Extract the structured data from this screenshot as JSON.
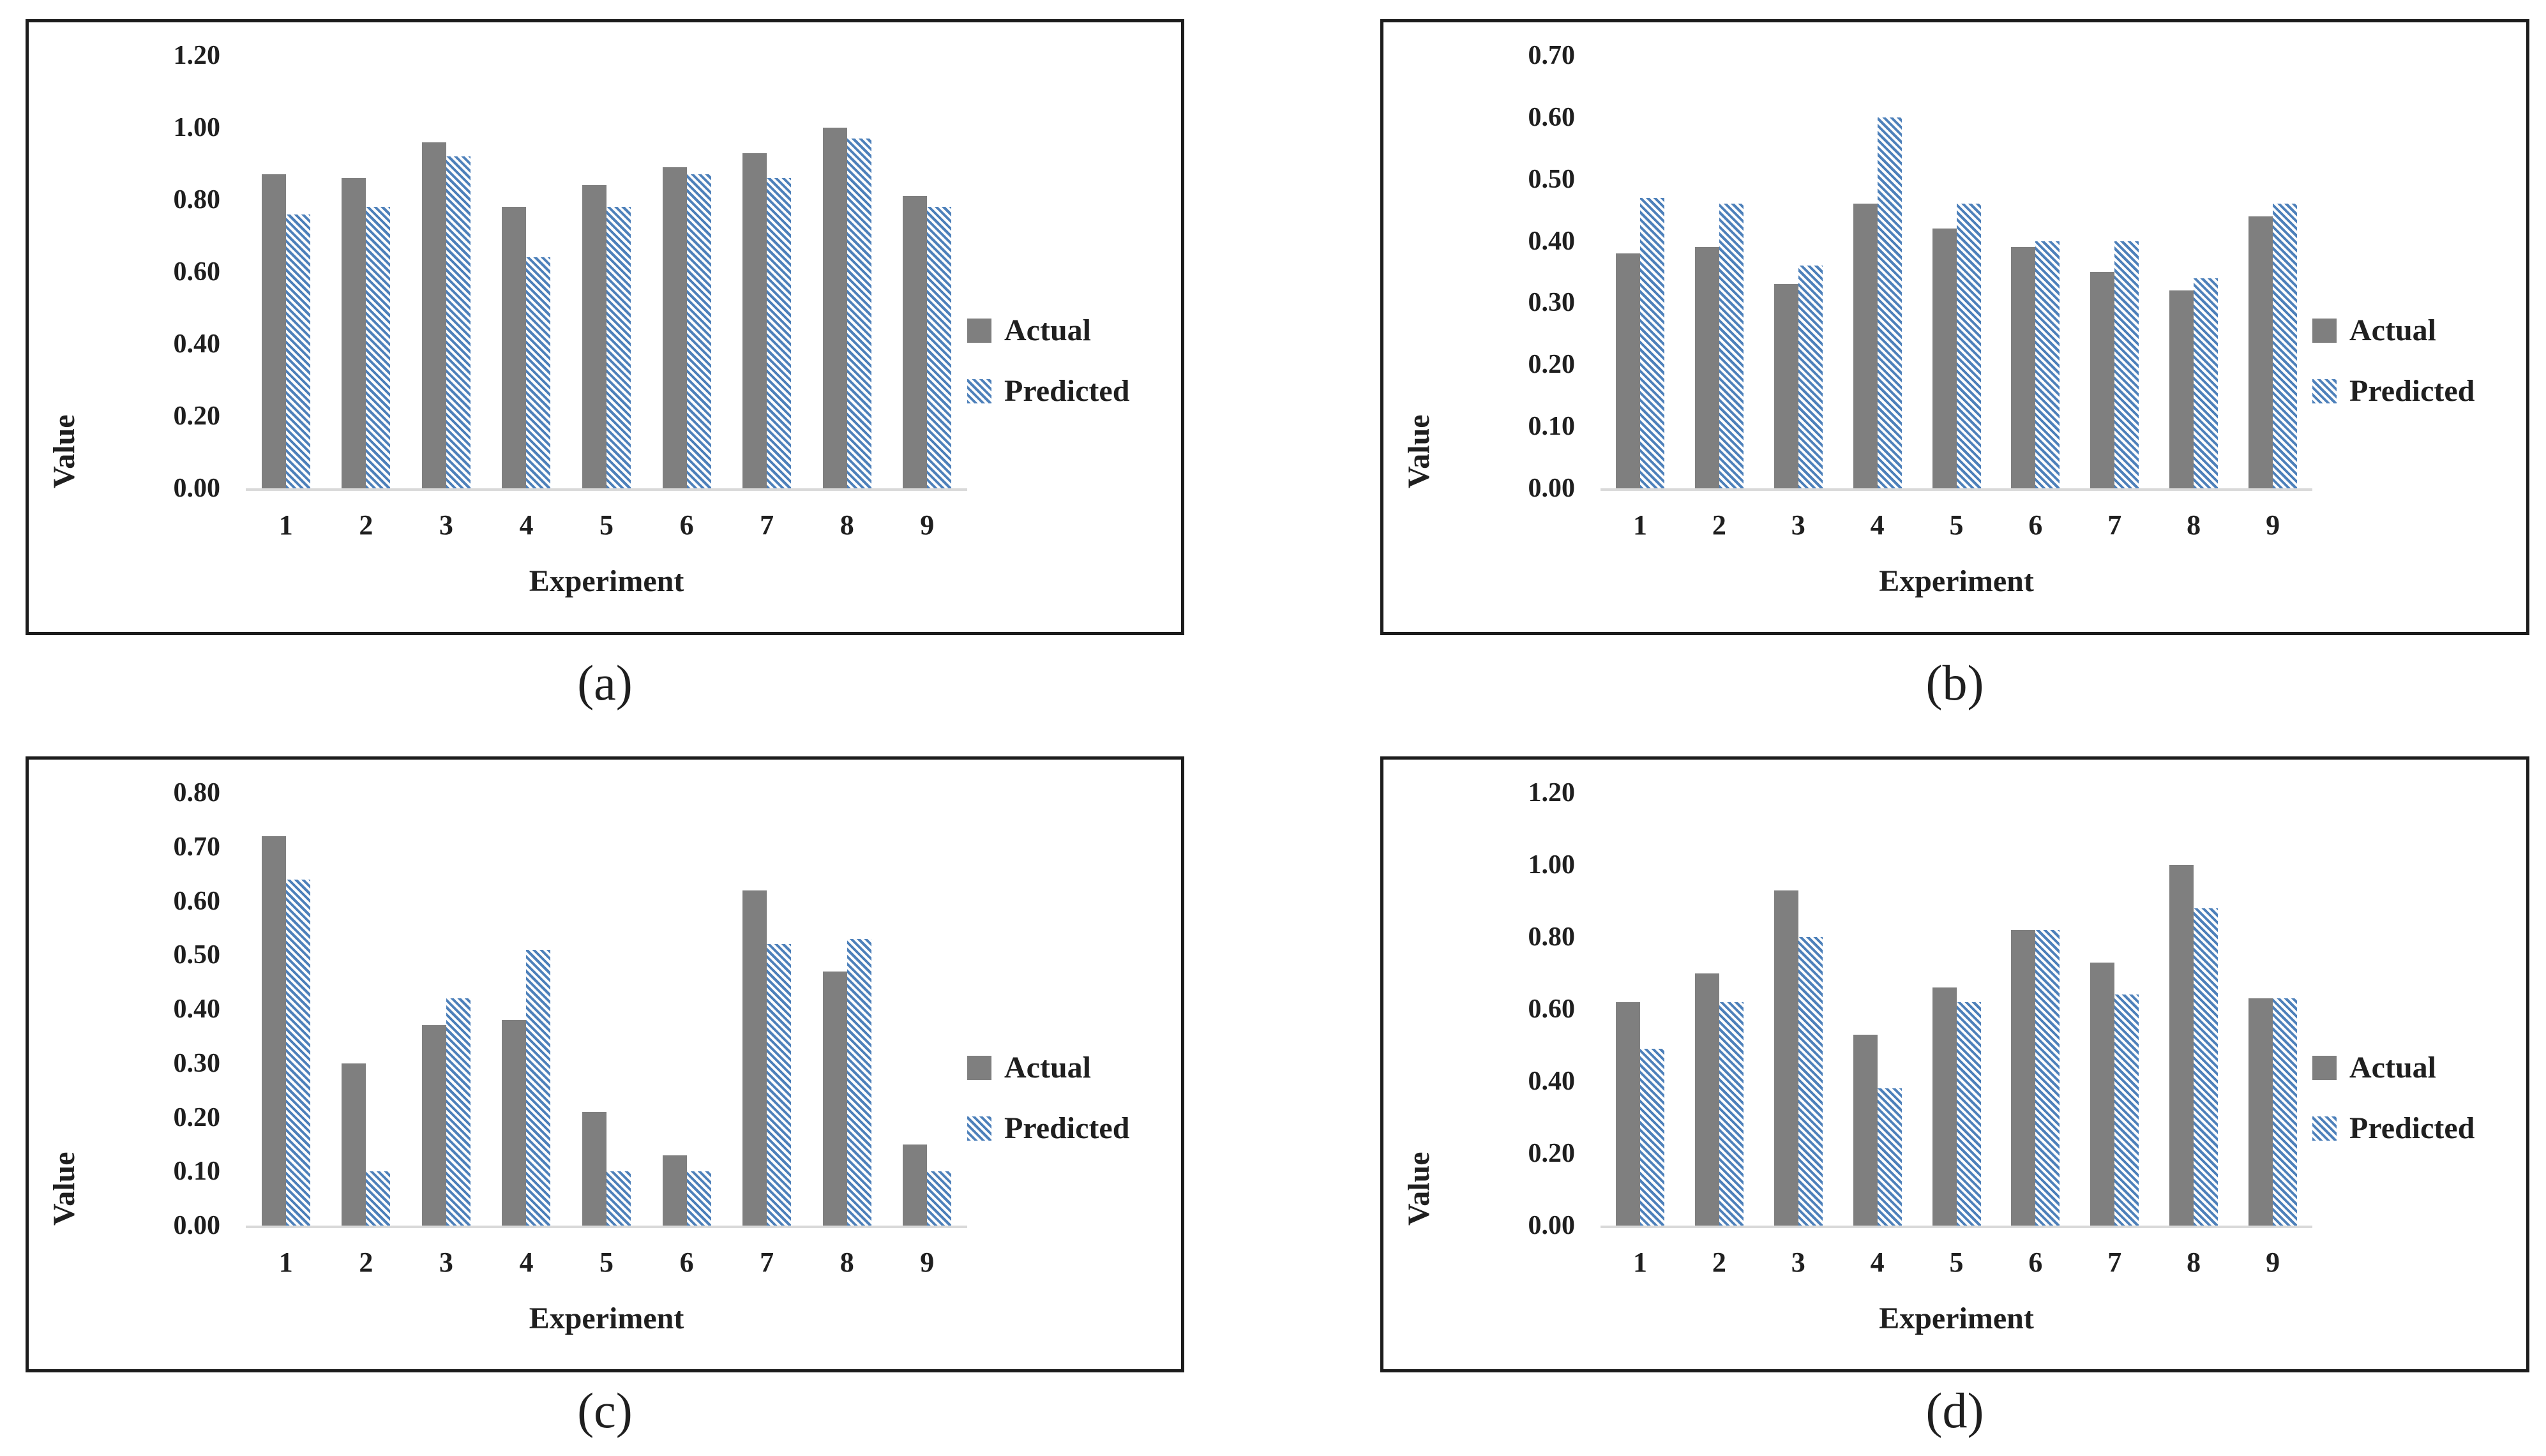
{
  "colors": {
    "actual_bar": "#7f7f7f",
    "predicted_bar_stripe": "#4d80ba",
    "axis_line": "#d9d9d9",
    "text": "#1f1f1f",
    "panel_border": "#1c1c1c"
  },
  "legend": {
    "actual": "Actual",
    "predicted": "Predicted"
  },
  "chart_data": [
    {
      "type": "bar",
      "panel_label": "(a)",
      "xlabel": "Experiment",
      "ylabel": "Value",
      "categories": [
        "1",
        "2",
        "3",
        "4",
        "5",
        "6",
        "7",
        "8",
        "9"
      ],
      "ylim": [
        0,
        1.2
      ],
      "ytick_labels": [
        "1.20",
        "1.00",
        "0.80",
        "0.60",
        "0.40",
        "0.20",
        "0.00"
      ],
      "grid": false,
      "legend_position": "right",
      "series": [
        {
          "name": "Actual",
          "values": [
            0.87,
            0.86,
            0.96,
            0.78,
            0.84,
            0.89,
            0.93,
            1.0,
            0.81
          ]
        },
        {
          "name": "Predicted",
          "values": [
            0.76,
            0.78,
            0.92,
            0.64,
            0.78,
            0.87,
            0.86,
            0.97,
            0.78
          ]
        }
      ]
    },
    {
      "type": "bar",
      "panel_label": "(b)",
      "xlabel": "Experiment",
      "ylabel": "Value",
      "categories": [
        "1",
        "2",
        "3",
        "4",
        "5",
        "6",
        "7",
        "8",
        "9"
      ],
      "ylim": [
        0,
        0.7
      ],
      "ytick_labels": [
        "0.70",
        "0.60",
        "0.50",
        "0.40",
        "0.30",
        "0.20",
        "0.10",
        "0.00"
      ],
      "grid": false,
      "legend_position": "right",
      "series": [
        {
          "name": "Actual",
          "values": [
            0.38,
            0.39,
            0.33,
            0.46,
            0.42,
            0.39,
            0.35,
            0.32,
            0.44
          ]
        },
        {
          "name": "Predicted",
          "values": [
            0.47,
            0.46,
            0.36,
            0.6,
            0.46,
            0.4,
            0.4,
            0.34,
            0.46
          ]
        }
      ]
    },
    {
      "type": "bar",
      "panel_label": "(c)",
      "xlabel": "Experiment",
      "ylabel": "Value",
      "categories": [
        "1",
        "2",
        "3",
        "4",
        "5",
        "6",
        "7",
        "8",
        "9"
      ],
      "ylim": [
        0,
        0.8
      ],
      "ytick_labels": [
        "0.80",
        "0.70",
        "0.60",
        "0.50",
        "0.40",
        "0.30",
        "0.20",
        "0.10",
        "0.00"
      ],
      "grid": false,
      "legend_position": "right",
      "series": [
        {
          "name": "Actual",
          "values": [
            0.72,
            0.3,
            0.37,
            0.38,
            0.21,
            0.13,
            0.62,
            0.47,
            0.15
          ]
        },
        {
          "name": "Predicted",
          "values": [
            0.64,
            0.1,
            0.42,
            0.51,
            0.1,
            0.1,
            0.52,
            0.53,
            0.1
          ]
        }
      ]
    },
    {
      "type": "bar",
      "panel_label": "(d)",
      "xlabel": "Experiment",
      "ylabel": "Value",
      "categories": [
        "1",
        "2",
        "3",
        "4",
        "5",
        "6",
        "7",
        "8",
        "9"
      ],
      "ylim": [
        0,
        1.2
      ],
      "ytick_labels": [
        "1.20",
        "1.00",
        "0.80",
        "0.60",
        "0.40",
        "0.20",
        "0.00"
      ],
      "grid": false,
      "legend_position": "right",
      "series": [
        {
          "name": "Actual",
          "values": [
            0.62,
            0.7,
            0.93,
            0.53,
            0.66,
            0.82,
            0.73,
            1.0,
            0.63
          ]
        },
        {
          "name": "Predicted",
          "values": [
            0.49,
            0.62,
            0.8,
            0.38,
            0.62,
            0.82,
            0.64,
            0.88,
            0.63
          ]
        }
      ]
    }
  ]
}
